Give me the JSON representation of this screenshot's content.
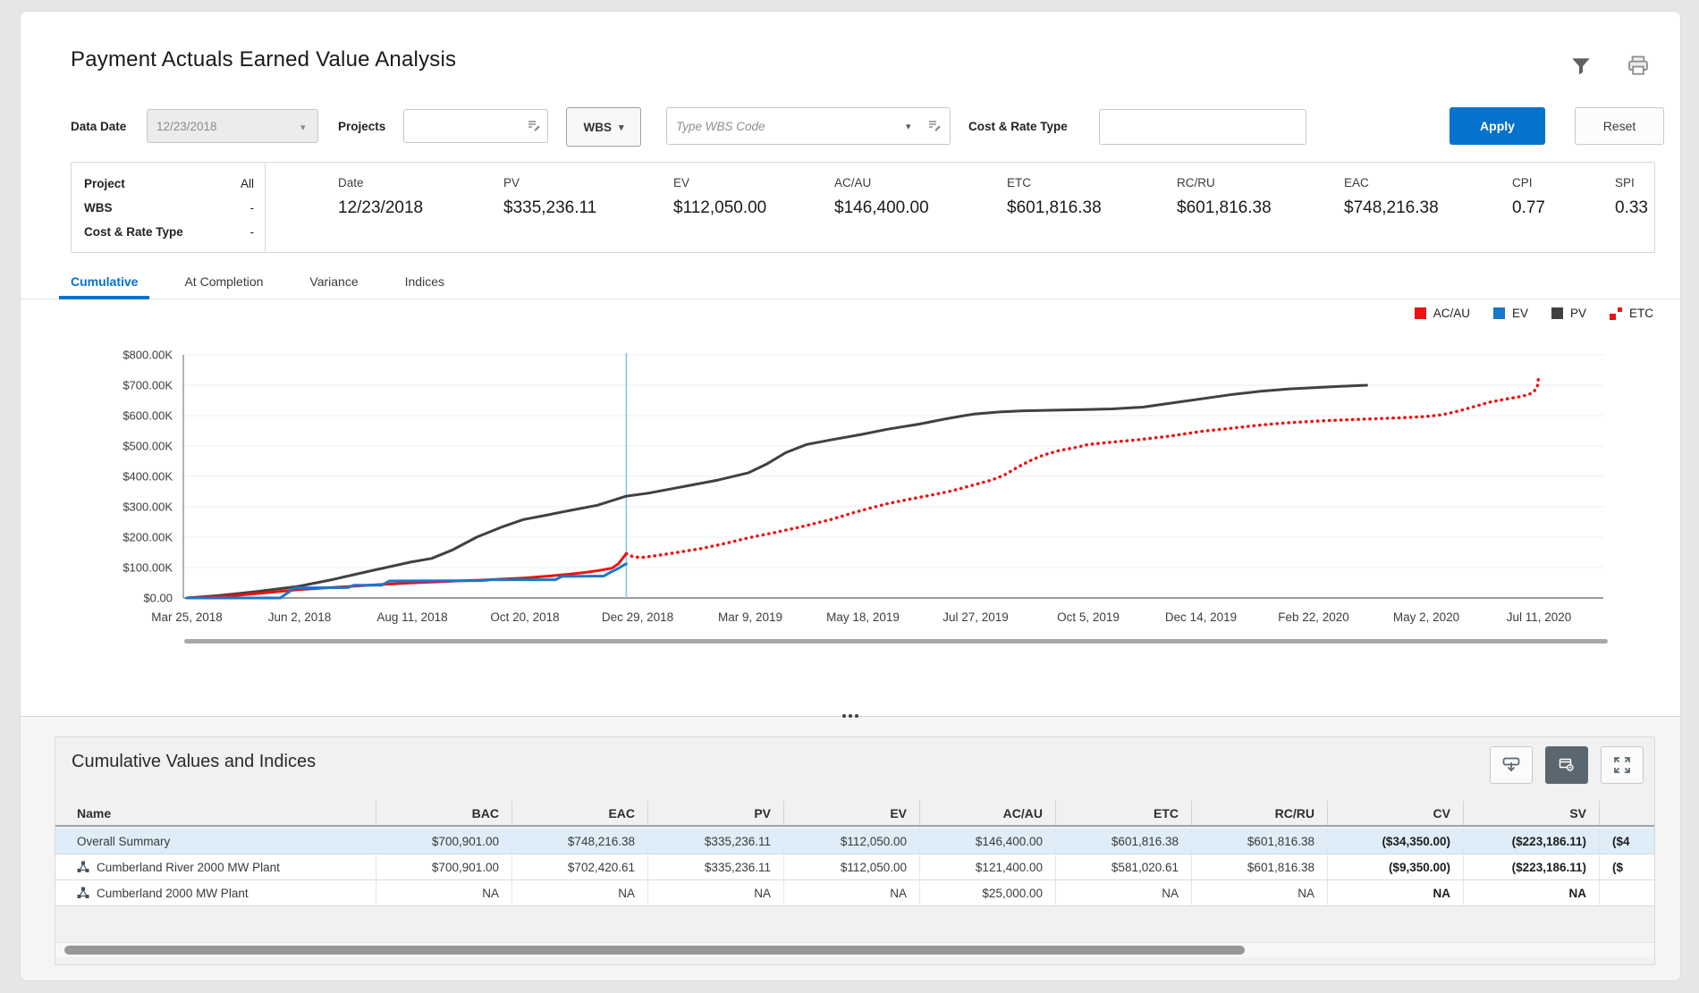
{
  "title": "Payment Actuals Earned Value Analysis",
  "colors": {
    "accent": "#0572ce",
    "ac_red": "#ee1212",
    "ev_blue": "#1878c8",
    "pv_dark": "#414141",
    "data_date_line": "#85c8e8",
    "selected_row": "#deedf8"
  },
  "filters": {
    "data_date": {
      "label": "Data Date",
      "value": "12/23/2018"
    },
    "projects": {
      "label": "Projects",
      "value": ""
    },
    "wbs_button": {
      "label": "WBS"
    },
    "wbs_code": {
      "placeholder": "Type WBS Code"
    },
    "cost_rate_type": {
      "label": "Cost & Rate Type",
      "value": ""
    },
    "apply_label": "Apply",
    "reset_label": "Reset"
  },
  "summary": {
    "left": [
      {
        "label": "Project",
        "value": "All"
      },
      {
        "label": "WBS",
        "value": "-"
      },
      {
        "label": "Cost & Rate Type",
        "value": "-"
      }
    ],
    "metrics": [
      {
        "label": "Date",
        "value": "12/23/2018"
      },
      {
        "label": "PV",
        "value": "$335,236.11"
      },
      {
        "label": "EV",
        "value": "$112,050.00"
      },
      {
        "label": "AC/AU",
        "value": "$146,400.00"
      },
      {
        "label": "ETC",
        "value": "$601,816.38"
      },
      {
        "label": "RC/RU",
        "value": "$601,816.38"
      },
      {
        "label": "EAC",
        "value": "$748,216.38"
      },
      {
        "label": "CPI",
        "value": "0.77"
      },
      {
        "label": "SPI",
        "value": "0.33"
      }
    ]
  },
  "tabs": [
    {
      "label": "Cumulative",
      "active": true
    },
    {
      "label": "At Completion",
      "active": false
    },
    {
      "label": "Variance",
      "active": false
    },
    {
      "label": "Indices",
      "active": false
    }
  ],
  "legend": [
    {
      "label": "AC/AU",
      "marker": "square",
      "color": "#ee1212"
    },
    {
      "label": "EV",
      "marker": "square",
      "color": "#1878c8"
    },
    {
      "label": "PV",
      "marker": "square",
      "color": "#414141"
    },
    {
      "label": "ETC",
      "marker": "dots",
      "color": "#ee1212"
    }
  ],
  "chart_data": {
    "type": "line",
    "title": "Cumulative earned value curves",
    "units": "$K",
    "ylim": [
      0,
      800
    ],
    "grid": true,
    "legend_position": "top-right",
    "y_axis": {
      "ticks": [
        {
          "value": 800,
          "label": "$800.00K"
        },
        {
          "value": 700,
          "label": "$700.00K"
        },
        {
          "value": 600,
          "label": "$600.00K"
        },
        {
          "value": 500,
          "label": "$500.00K"
        },
        {
          "value": 400,
          "label": "$400.00K"
        },
        {
          "value": 300,
          "label": "$300.00K"
        },
        {
          "value": 200,
          "label": "$200.00K"
        },
        {
          "value": 100,
          "label": "$100.00K"
        },
        {
          "value": 0,
          "label": "$0.00"
        }
      ]
    },
    "x_axis": {
      "ticks": [
        "Mar 25, 2018",
        "Jun 2, 2018",
        "Aug 11, 2018",
        "Oct 20, 2018",
        "Dec 29, 2018",
        "Mar 9, 2019",
        "May 18, 2019",
        "Jul 27, 2019",
        "Oct 5, 2019",
        "Dec 14, 2019",
        "Feb 22, 2020",
        "May 2, 2020",
        "Jul 11, 2020"
      ],
      "tick_interval_days": 70
    },
    "data_date_day": 273,
    "data_date_label": "12/23/2018",
    "series": [
      {
        "name": "PV",
        "color": "#414141",
        "style": "solid",
        "points": [
          [
            0,
            0
          ],
          [
            20,
            8
          ],
          [
            45,
            22
          ],
          [
            69,
            38
          ],
          [
            90,
            60
          ],
          [
            115,
            90
          ],
          [
            139,
            118
          ],
          [
            152,
            130
          ],
          [
            165,
            158
          ],
          [
            180,
            200
          ],
          [
            195,
            232
          ],
          [
            209,
            258
          ],
          [
            223,
            272
          ],
          [
            238,
            288
          ],
          [
            255,
            305
          ],
          [
            273,
            335
          ],
          [
            287,
            345
          ],
          [
            310,
            368
          ],
          [
            330,
            388
          ],
          [
            349,
            412
          ],
          [
            360,
            440
          ],
          [
            372,
            478
          ],
          [
            385,
            505
          ],
          [
            400,
            520
          ],
          [
            419,
            538
          ],
          [
            435,
            555
          ],
          [
            455,
            572
          ],
          [
            470,
            588
          ],
          [
            483,
            600
          ],
          [
            489,
            605
          ],
          [
            505,
            612
          ],
          [
            520,
            616
          ],
          [
            540,
            618
          ],
          [
            558,
            620
          ],
          [
            575,
            622
          ],
          [
            594,
            628
          ],
          [
            610,
            640
          ],
          [
            630,
            655
          ],
          [
            650,
            670
          ],
          [
            667,
            680
          ],
          [
            685,
            688
          ],
          [
            700,
            692
          ],
          [
            715,
            696
          ],
          [
            733,
            700
          ]
        ]
      },
      {
        "name": "ETC",
        "color": "#ee1212",
        "style": "dotted",
        "points": [
          [
            273,
            146
          ],
          [
            277,
            136
          ],
          [
            282,
            133
          ],
          [
            290,
            138
          ],
          [
            305,
            150
          ],
          [
            320,
            163
          ],
          [
            335,
            180
          ],
          [
            349,
            198
          ],
          [
            365,
            215
          ],
          [
            380,
            232
          ],
          [
            400,
            258
          ],
          [
            419,
            288
          ],
          [
            435,
            310
          ],
          [
            449,
            325
          ],
          [
            462,
            338
          ],
          [
            475,
            352
          ],
          [
            489,
            372
          ],
          [
            500,
            388
          ],
          [
            508,
            405
          ],
          [
            516,
            430
          ],
          [
            524,
            452
          ],
          [
            532,
            470
          ],
          [
            542,
            485
          ],
          [
            552,
            495
          ],
          [
            560,
            505
          ],
          [
            575,
            513
          ],
          [
            590,
            520
          ],
          [
            610,
            532
          ],
          [
            630,
            548
          ],
          [
            648,
            558
          ],
          [
            665,
            568
          ],
          [
            680,
            575
          ],
          [
            695,
            580
          ],
          [
            710,
            584
          ],
          [
            725,
            587
          ],
          [
            740,
            590
          ],
          [
            755,
            593
          ],
          [
            770,
            597
          ],
          [
            780,
            603
          ],
          [
            790,
            615
          ],
          [
            800,
            630
          ],
          [
            810,
            645
          ],
          [
            820,
            655
          ],
          [
            828,
            662
          ],
          [
            834,
            670
          ],
          [
            837,
            680
          ],
          [
            839,
            695
          ],
          [
            840,
            735
          ]
        ]
      },
      {
        "name": "AC/AU",
        "color": "#ee1212",
        "style": "solid",
        "points": [
          [
            0,
            0
          ],
          [
            30,
            8
          ],
          [
            55,
            20
          ],
          [
            69,
            27
          ],
          [
            95,
            36
          ],
          [
            120,
            44
          ],
          [
            139,
            49
          ],
          [
            160,
            54
          ],
          [
            185,
            59
          ],
          [
            210,
            66
          ],
          [
            225,
            72
          ],
          [
            237,
            78
          ],
          [
            248,
            84
          ],
          [
            258,
            92
          ],
          [
            264,
            98
          ],
          [
            268,
            112
          ],
          [
            271,
            132
          ],
          [
            273,
            146
          ]
        ]
      },
      {
        "name": "EV",
        "color": "#1878c8",
        "style": "solid",
        "points": [
          [
            0,
            0
          ],
          [
            58,
            0
          ],
          [
            63,
            18
          ],
          [
            67,
            33
          ],
          [
            100,
            34
          ],
          [
            104,
            42
          ],
          [
            121,
            42
          ],
          [
            126,
            56
          ],
          [
            183,
            57
          ],
          [
            189,
            60
          ],
          [
            229,
            60
          ],
          [
            233,
            71
          ],
          [
            259,
            72
          ],
          [
            263,
            84
          ],
          [
            268,
            97
          ],
          [
            271,
            107
          ],
          [
            273,
            112
          ]
        ]
      }
    ]
  },
  "lower_panel": {
    "title": "Cumulative Values and Indices",
    "columns": [
      "Name",
      "BAC",
      "EAC",
      "PV",
      "EV",
      "AC/AU",
      "ETC",
      "RC/RU",
      "CV",
      "SV"
    ],
    "bold_columns": [
      "CV",
      "SV"
    ],
    "rows": [
      {
        "name": "Overall Summary",
        "icon": false,
        "selected": true,
        "values": [
          "$700,901.00",
          "$748,216.38",
          "$335,236.11",
          "$112,050.00",
          "$146,400.00",
          "$601,816.38",
          "$601,816.38",
          "($34,350.00)",
          "($223,186.11)"
        ],
        "clipped": "($4"
      },
      {
        "name": "Cumberland River 2000 MW Plant",
        "icon": true,
        "selected": false,
        "values": [
          "$700,901.00",
          "$702,420.61",
          "$335,236.11",
          "$112,050.00",
          "$121,400.00",
          "$581,020.61",
          "$601,816.38",
          "($9,350.00)",
          "($223,186.11)"
        ],
        "clipped": "($"
      },
      {
        "name": "Cumberland 2000 MW Plant",
        "icon": true,
        "selected": false,
        "values": [
          "NA",
          "NA",
          "NA",
          "NA",
          "$25,000.00",
          "NA",
          "NA",
          "NA",
          "NA"
        ],
        "clipped": ""
      }
    ]
  }
}
